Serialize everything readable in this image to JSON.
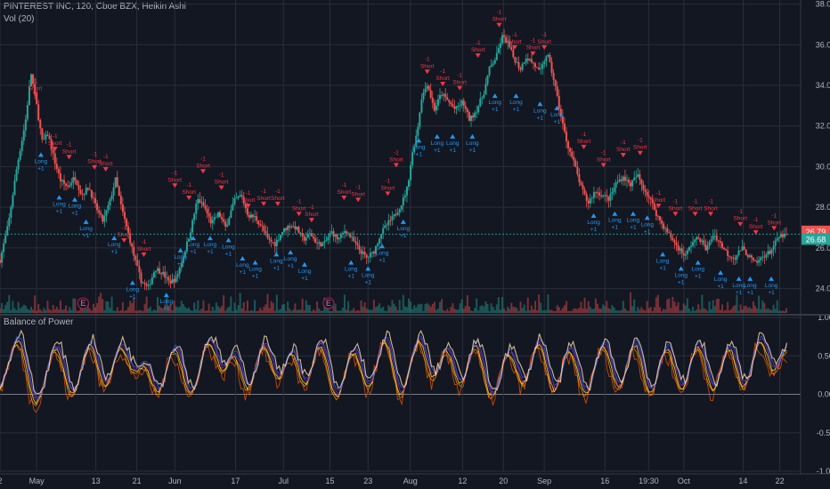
{
  "header": {
    "symbol_line": "PINTEREST INC, 120, Cboe BZX, Heikin Ashi",
    "volume_label": "Vol (20)",
    "indicator_label": "Balance of Power"
  },
  "colors": {
    "background": "#131722",
    "up": "#26a69a",
    "down": "#ef5350",
    "long_signal": "#2196f3",
    "short_signal": "#f23645",
    "grid": "#2a2e39"
  },
  "chart_data": [
    {
      "type": "candlestick",
      "title": "PINTEREST INC, 120, Cboe BZX, Heikin Ashi",
      "ylim": [
        22.8,
        38.2
      ],
      "y_ticks": [
        "24.00",
        "26.00",
        "28.00",
        "30.00",
        "32.00",
        "34.00",
        "36.00",
        "38.00"
      ],
      "x_ticks": [
        "2",
        "May",
        "13",
        "21",
        "Jun",
        "17",
        "Jul",
        "15",
        "23",
        "Aug",
        "12",
        "20",
        "Sep",
        "16",
        "19:30",
        "Oct",
        "14",
        "22"
      ],
      "x_tick_positions": [
        0.0,
        2.6,
        6.8,
        9.7,
        12.4,
        16.7,
        20.1,
        23.4,
        26.1,
        29.1,
        32.8,
        35.7,
        38.6,
        42.9,
        46.0,
        48.5,
        52.7,
        55.3
      ],
      "close_path": [
        [
          0,
          25.4
        ],
        [
          0.6,
          27.2
        ],
        [
          1.2,
          30.0
        ],
        [
          1.8,
          32.2
        ],
        [
          2.2,
          34.6
        ],
        [
          2.6,
          33.0
        ],
        [
          3.0,
          31.2
        ],
        [
          3.4,
          31.6
        ],
        [
          3.9,
          30.2
        ],
        [
          4.3,
          29.3
        ],
        [
          4.8,
          29.0
        ],
        [
          5.3,
          29.5
        ],
        [
          5.8,
          28.6
        ],
        [
          6.3,
          29.0
        ],
        [
          6.8,
          28.0
        ],
        [
          7.3,
          27.3
        ],
        [
          7.8,
          28.3
        ],
        [
          8.2,
          29.4
        ],
        [
          8.6,
          28.0
        ],
        [
          9.1,
          26.7
        ],
        [
          9.5,
          25.6
        ],
        [
          10.0,
          24.4
        ],
        [
          10.5,
          24.0
        ],
        [
          11.0,
          25.0
        ],
        [
          11.5,
          24.8
        ],
        [
          12.0,
          24.3
        ],
        [
          12.5,
          24.5
        ],
        [
          13.0,
          25.6
        ],
        [
          13.5,
          26.8
        ],
        [
          14.0,
          28.4
        ],
        [
          14.5,
          28.0
        ],
        [
          15.0,
          27.2
        ],
        [
          15.5,
          27.7
        ],
        [
          16.0,
          27.0
        ],
        [
          16.6,
          28.3
        ],
        [
          17.1,
          28.6
        ],
        [
          17.6,
          27.6
        ],
        [
          18.1,
          27.5
        ],
        [
          18.6,
          27.0
        ],
        [
          19.0,
          26.4
        ],
        [
          19.5,
          26.2
        ],
        [
          20.0,
          26.8
        ],
        [
          20.5,
          27.1
        ],
        [
          21.0,
          27.0
        ],
        [
          21.5,
          26.4
        ],
        [
          22.0,
          26.7
        ],
        [
          22.5,
          26.2
        ],
        [
          23.0,
          26.2
        ],
        [
          23.5,
          26.8
        ],
        [
          24.0,
          26.4
        ],
        [
          24.5,
          26.9
        ],
        [
          25.0,
          26.4
        ],
        [
          25.5,
          25.9
        ],
        [
          26.0,
          25.5
        ],
        [
          26.5,
          25.8
        ],
        [
          27.0,
          26.7
        ],
        [
          27.5,
          27.2
        ],
        [
          28.0,
          27.6
        ],
        [
          28.5,
          28.2
        ],
        [
          28.9,
          29.0
        ],
        [
          29.2,
          30.5
        ],
        [
          29.6,
          31.8
        ],
        [
          29.9,
          33.4
        ],
        [
          30.3,
          34.1
        ],
        [
          30.8,
          32.8
        ],
        [
          31.3,
          33.6
        ],
        [
          31.8,
          33.2
        ],
        [
          32.3,
          32.8
        ],
        [
          32.8,
          33.2
        ],
        [
          33.3,
          32.3
        ],
        [
          33.8,
          32.8
        ],
        [
          34.3,
          33.6
        ],
        [
          34.7,
          34.8
        ],
        [
          35.2,
          35.4
        ],
        [
          35.6,
          36.4
        ],
        [
          36.0,
          36.1
        ],
        [
          36.4,
          35.4
        ],
        [
          36.9,
          34.8
        ],
        [
          37.3,
          35.4
        ],
        [
          37.8,
          35.1
        ],
        [
          38.3,
          34.6
        ],
        [
          38.8,
          35.6
        ],
        [
          39.3,
          34.2
        ],
        [
          39.8,
          32.4
        ],
        [
          40.2,
          31.2
        ],
        [
          40.7,
          30.2
        ],
        [
          41.2,
          29.0
        ],
        [
          41.7,
          28.2
        ],
        [
          42.2,
          28.8
        ],
        [
          42.7,
          28.6
        ],
        [
          43.2,
          28.4
        ],
        [
          43.7,
          29.2
        ],
        [
          44.2,
          29.5
        ],
        [
          44.7,
          29.1
        ],
        [
          45.2,
          29.6
        ],
        [
          45.6,
          29.0
        ],
        [
          46.1,
          28.4
        ],
        [
          46.6,
          27.6
        ],
        [
          47.1,
          27.0
        ],
        [
          47.6,
          26.5
        ],
        [
          48.1,
          26.0
        ],
        [
          48.6,
          25.6
        ],
        [
          49.1,
          26.3
        ],
        [
          49.6,
          26.5
        ],
        [
          50.1,
          25.9
        ],
        [
          50.6,
          26.7
        ],
        [
          51.1,
          26.2
        ],
        [
          51.6,
          25.7
        ],
        [
          52.1,
          25.5
        ],
        [
          52.6,
          26.0
        ],
        [
          53.1,
          25.6
        ],
        [
          53.6,
          25.2
        ],
        [
          54.1,
          25.6
        ],
        [
          54.6,
          25.8
        ],
        [
          55.3,
          26.6
        ]
      ],
      "x_range": [
        0,
        56.4
      ],
      "last_price": "26.68",
      "last_price_alt": "26.79",
      "earnings_markers": [
        {
          "x": 5.9,
          "label": "E"
        },
        {
          "x": 23.3,
          "label": "E"
        }
      ],
      "signals": [
        {
          "type": "short",
          "x": 2.5,
          "y": 33.5,
          "qty": "-1"
        },
        {
          "type": "long",
          "x": 2.9,
          "y": 30.7,
          "qty": "+1"
        },
        {
          "type": "short",
          "x": 3.9,
          "y": 30.8,
          "qty": "-1"
        },
        {
          "type": "long",
          "x": 4.2,
          "y": 28.6,
          "qty": "+1"
        },
        {
          "type": "short",
          "x": 4.9,
          "y": 30.4,
          "qty": "-1"
        },
        {
          "type": "long",
          "x": 5.3,
          "y": 28.5,
          "qty": "+1"
        },
        {
          "type": "short",
          "x": 6.7,
          "y": 29.9,
          "qty": "-1"
        },
        {
          "type": "long",
          "x": 6.1,
          "y": 27.4,
          "qty": "+1"
        },
        {
          "type": "short",
          "x": 7.5,
          "y": 29.8,
          "qty": "-1"
        },
        {
          "type": "long",
          "x": 8.1,
          "y": 26.6,
          "qty": "+1"
        },
        {
          "type": "short",
          "x": 8.8,
          "y": 26.3,
          "qty": "-1"
        },
        {
          "type": "long",
          "x": 9.4,
          "y": 24.4,
          "qty": "+1"
        },
        {
          "type": "short",
          "x": 10.2,
          "y": 25.6,
          "qty": "-1"
        },
        {
          "type": "long",
          "x": 11.8,
          "y": 23.8,
          "qty": "+1"
        },
        {
          "type": "short",
          "x": 12.4,
          "y": 29.0,
          "qty": "-1"
        },
        {
          "type": "long",
          "x": 12.8,
          "y": 26.0,
          "qty": "+1"
        },
        {
          "type": "short",
          "x": 13.4,
          "y": 28.4,
          "qty": "-1"
        },
        {
          "type": "long",
          "x": 13.7,
          "y": 26.6,
          "qty": "+1"
        },
        {
          "type": "short",
          "x": 14.4,
          "y": 29.7,
          "qty": "-1"
        },
        {
          "type": "long",
          "x": 14.9,
          "y": 26.6,
          "qty": "+1"
        },
        {
          "type": "short",
          "x": 15.7,
          "y": 28.9,
          "qty": "-1"
        },
        {
          "type": "long",
          "x": 16.2,
          "y": 26.5,
          "qty": "+1"
        },
        {
          "type": "short",
          "x": 17.6,
          "y": 28.0,
          "qty": "-1"
        },
        {
          "type": "long",
          "x": 17.2,
          "y": 25.6,
          "qty": "+1"
        },
        {
          "type": "short",
          "x": 18.7,
          "y": 28.1,
          "qty": "-1"
        },
        {
          "type": "long",
          "x": 18.1,
          "y": 25.4,
          "qty": "+1"
        },
        {
          "type": "short",
          "x": 19.7,
          "y": 28.1,
          "qty": "-1"
        },
        {
          "type": "long",
          "x": 19.6,
          "y": 25.8,
          "qty": "+1"
        },
        {
          "type": "short",
          "x": 21.2,
          "y": 27.6,
          "qty": "-1"
        },
        {
          "type": "long",
          "x": 20.6,
          "y": 25.9,
          "qty": "+1"
        },
        {
          "type": "short",
          "x": 22.1,
          "y": 27.3,
          "qty": "-1"
        },
        {
          "type": "long",
          "x": 21.6,
          "y": 25.3,
          "qty": "+1"
        },
        {
          "type": "short",
          "x": 24.4,
          "y": 28.4,
          "qty": "-1"
        },
        {
          "type": "long",
          "x": 24.9,
          "y": 25.4,
          "qty": "+1"
        },
        {
          "type": "short",
          "x": 25.4,
          "y": 28.3,
          "qty": "-1"
        },
        {
          "type": "long",
          "x": 26.1,
          "y": 25.1,
          "qty": "+1"
        },
        {
          "type": "short",
          "x": 27.5,
          "y": 28.6,
          "qty": "-1"
        },
        {
          "type": "long",
          "x": 27.1,
          "y": 26.2,
          "qty": "+1"
        },
        {
          "type": "short",
          "x": 28.1,
          "y": 30.0,
          "qty": "-1"
        },
        {
          "type": "long",
          "x": 28.6,
          "y": 27.4,
          "qty": "+1"
        },
        {
          "type": "short",
          "x": 30.3,
          "y": 34.6,
          "qty": "-1"
        },
        {
          "type": "long",
          "x": 29.7,
          "y": 31.4,
          "qty": "+1"
        },
        {
          "type": "short",
          "x": 31.4,
          "y": 34.0,
          "qty": "-1"
        },
        {
          "type": "long",
          "x": 31.0,
          "y": 31.6,
          "qty": "+1"
        },
        {
          "type": "short",
          "x": 32.6,
          "y": 33.8,
          "qty": "-1"
        },
        {
          "type": "long",
          "x": 32.1,
          "y": 31.6,
          "qty": "+1"
        },
        {
          "type": "short",
          "x": 33.9,
          "y": 35.4,
          "qty": "-1"
        },
        {
          "type": "long",
          "x": 33.5,
          "y": 31.6,
          "qty": "+1"
        },
        {
          "type": "short",
          "x": 35.4,
          "y": 36.9,
          "qty": "-1"
        },
        {
          "type": "long",
          "x": 35.1,
          "y": 33.6,
          "qty": "+1"
        },
        {
          "type": "short",
          "x": 36.5,
          "y": 35.8,
          "qty": "-1"
        },
        {
          "type": "long",
          "x": 36.6,
          "y": 33.6,
          "qty": "+1"
        },
        {
          "type": "short",
          "x": 37.8,
          "y": 35.5,
          "qty": "-1"
        },
        {
          "type": "long",
          "x": 38.3,
          "y": 33.2,
          "qty": "+1"
        },
        {
          "type": "short",
          "x": 38.6,
          "y": 35.8,
          "qty": "-1"
        },
        {
          "type": "long",
          "x": 39.5,
          "y": 33.0,
          "qty": "+1"
        },
        {
          "type": "short",
          "x": 41.4,
          "y": 30.9,
          "qty": "-1"
        },
        {
          "type": "long",
          "x": 42.1,
          "y": 27.7,
          "qty": "+1"
        },
        {
          "type": "short",
          "x": 42.8,
          "y": 30.0,
          "qty": "-1"
        },
        {
          "type": "long",
          "x": 43.6,
          "y": 27.8,
          "qty": "+1"
        },
        {
          "type": "short",
          "x": 44.2,
          "y": 30.5,
          "qty": "-1"
        },
        {
          "type": "long",
          "x": 44.9,
          "y": 27.8,
          "qty": "+1"
        },
        {
          "type": "short",
          "x": 45.4,
          "y": 30.6,
          "qty": "-1"
        },
        {
          "type": "long",
          "x": 45.9,
          "y": 27.6,
          "qty": "+1"
        },
        {
          "type": "short",
          "x": 46.7,
          "y": 28.0,
          "qty": "-1"
        },
        {
          "type": "long",
          "x": 47.0,
          "y": 25.8,
          "qty": "+1"
        },
        {
          "type": "short",
          "x": 47.9,
          "y": 27.6,
          "qty": "-1"
        },
        {
          "type": "long",
          "x": 48.3,
          "y": 25.1,
          "qty": "+1"
        },
        {
          "type": "short",
          "x": 49.3,
          "y": 27.6,
          "qty": "-1"
        },
        {
          "type": "long",
          "x": 49.5,
          "y": 25.4,
          "qty": "+1"
        },
        {
          "type": "short",
          "x": 50.4,
          "y": 27.6,
          "qty": "-1"
        },
        {
          "type": "long",
          "x": 51.1,
          "y": 24.9,
          "qty": "+1"
        },
        {
          "type": "short",
          "x": 52.5,
          "y": 27.1,
          "qty": "-1"
        },
        {
          "type": "long",
          "x": 52.4,
          "y": 24.6,
          "qty": "+1"
        },
        {
          "type": "short",
          "x": 53.6,
          "y": 26.7,
          "qty": "-1"
        },
        {
          "type": "long",
          "x": 53.2,
          "y": 24.6,
          "qty": "+1"
        },
        {
          "type": "short",
          "x": 54.9,
          "y": 26.9,
          "qty": "-1"
        },
        {
          "type": "long",
          "x": 54.7,
          "y": 24.6,
          "qty": "+1"
        }
      ],
      "signal_labels": {
        "long": "Long",
        "short": "Short"
      }
    },
    {
      "type": "line",
      "title": "Balance of Power",
      "ylim": [
        -1.0,
        1.0
      ],
      "y_ticks": [
        "1.00",
        "0.50",
        "0.00",
        "-0.50",
        "-1.00"
      ],
      "y_tick_values": [
        1.0,
        0.5,
        0.0,
        -0.5,
        -1.0
      ],
      "series_colors": [
        "#e65100",
        "#ff9800",
        "#ffeb3b",
        "#9c27b0",
        "#2962ff",
        "#ffe0b2"
      ],
      "cycle_centers": [
        1.2,
        3.9,
        6.3,
        8.4,
        10.0,
        12.3,
        14.7,
        16.4,
        18.6,
        20.5,
        22.6,
        25.0,
        27.2,
        29.6,
        31.5,
        33.6,
        36.0,
        38.1,
        40.3,
        42.7,
        44.9,
        47.2,
        49.4,
        51.6,
        53.8,
        55.6
      ],
      "cycle_amplitudes": [
        0.65,
        0.55,
        0.6,
        0.58,
        0.45,
        0.55,
        0.62,
        0.55,
        0.6,
        0.55,
        0.62,
        0.52,
        0.66,
        0.65,
        0.58,
        0.62,
        0.5,
        0.64,
        0.55,
        0.6,
        0.62,
        0.56,
        0.6,
        0.58,
        0.66,
        0.62
      ]
    }
  ]
}
